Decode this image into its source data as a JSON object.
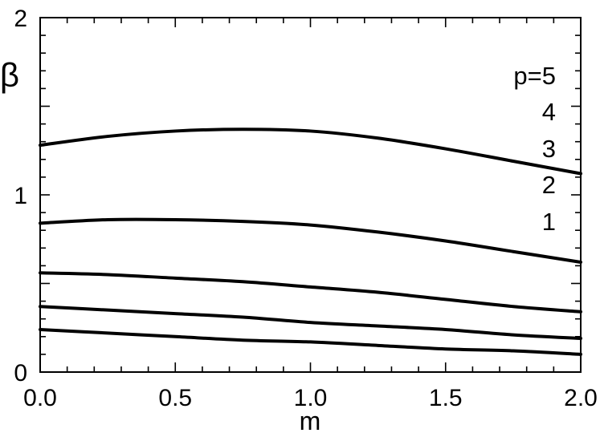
{
  "chart_data": {
    "type": "line",
    "xlabel": "m",
    "ylabel": "β",
    "xlim": [
      0.0,
      2.0
    ],
    "ylim": [
      0,
      2
    ],
    "x_ticks": [
      "0.0",
      "0.5",
      "1.0",
      "1.5",
      "2.0"
    ],
    "y_ticks": [
      "0",
      "1",
      "2"
    ],
    "grid": false,
    "series_labels": [
      "p=5",
      "4",
      "3",
      "2",
      "1"
    ],
    "series": [
      {
        "x": [
          0.0,
          0.25,
          0.5,
          0.75,
          1.0,
          1.25,
          1.5,
          1.75,
          2.0
        ],
        "values": [
          1.28,
          1.33,
          1.36,
          1.37,
          1.36,
          1.32,
          1.26,
          1.19,
          1.12
        ]
      },
      {
        "x": [
          0.0,
          0.25,
          0.5,
          0.75,
          1.0,
          1.25,
          1.5,
          1.75,
          2.0
        ],
        "values": [
          0.84,
          0.86,
          0.86,
          0.85,
          0.83,
          0.79,
          0.74,
          0.68,
          0.62
        ]
      },
      {
        "x": [
          0.0,
          0.25,
          0.5,
          0.75,
          1.0,
          1.25,
          1.5,
          1.75,
          2.0
        ],
        "values": [
          0.56,
          0.55,
          0.53,
          0.51,
          0.48,
          0.45,
          0.41,
          0.37,
          0.34
        ]
      },
      {
        "x": [
          0.0,
          0.25,
          0.5,
          0.75,
          1.0,
          1.25,
          1.5,
          1.75,
          2.0
        ],
        "values": [
          0.37,
          0.35,
          0.33,
          0.31,
          0.28,
          0.26,
          0.24,
          0.21,
          0.19
        ]
      },
      {
        "x": [
          0.0,
          0.25,
          0.5,
          0.75,
          1.0,
          1.25,
          1.5,
          1.75,
          2.0
        ],
        "values": [
          0.24,
          0.22,
          0.2,
          0.18,
          0.17,
          0.15,
          0.13,
          0.12,
          0.1
        ]
      }
    ]
  }
}
